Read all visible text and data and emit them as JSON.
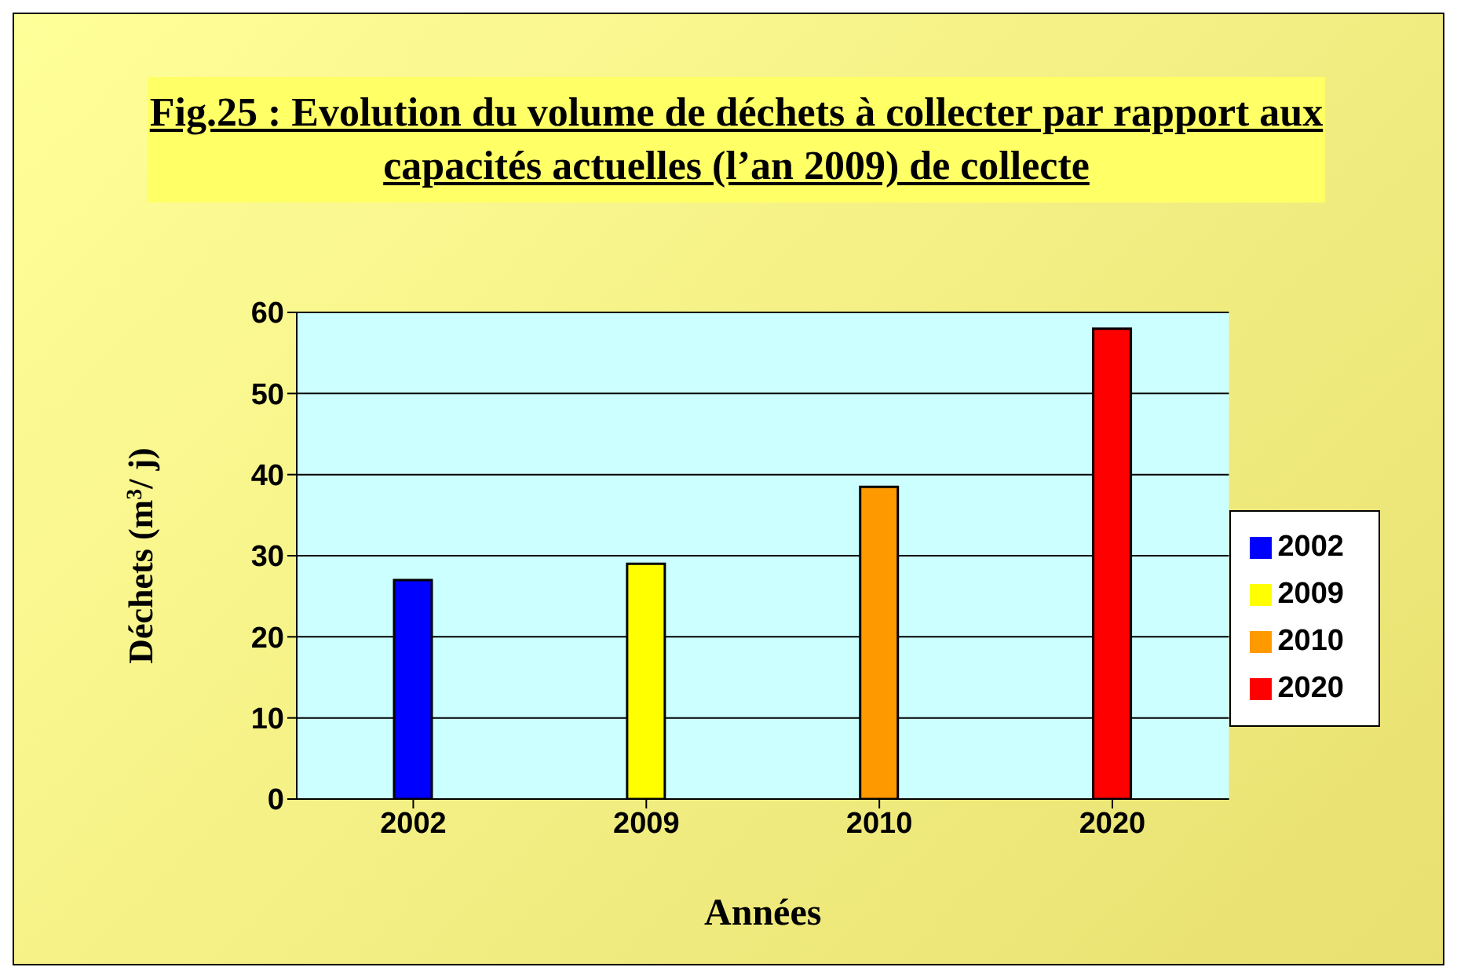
{
  "chart_data": {
    "type": "bar",
    "title": "Fig.25 : Evolution du volume de déchets à collecter par rapport aux capacités actuelles (l’an 2009) de collecte",
    "xlabel": "Années",
    "ylabel": "Déchets (m$^{3}$/ j)",
    "categories": [
      "2002",
      "2009",
      "2010",
      "2020"
    ],
    "series": [
      {
        "name": "2002",
        "color": "#0000ff",
        "values": [
          27,
          null,
          null,
          null
        ]
      },
      {
        "name": "2009",
        "color": "#ffff00",
        "values": [
          null,
          29,
          null,
          null
        ]
      },
      {
        "name": "2010",
        "color": "#ff9900",
        "values": [
          null,
          null,
          38.5,
          null
        ]
      },
      {
        "name": "2020",
        "color": "#ff0000",
        "values": [
          null,
          null,
          null,
          58
        ]
      }
    ],
    "stacked": true,
    "ylim": [
      0,
      60
    ],
    "yticks": [
      0,
      10,
      20,
      30,
      40,
      50,
      60
    ],
    "grid": "y",
    "legend": "right"
  }
}
